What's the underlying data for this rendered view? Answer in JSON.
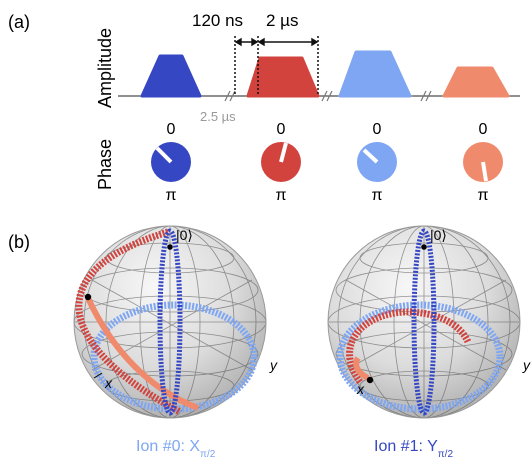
{
  "panel_a": {
    "label": "(a)",
    "amplitude_label": "Amplitude",
    "phase_label": "Phase",
    "ramp_time": "120 ns",
    "pulse_duration": "2 µs",
    "gap_time": "2.5 µs",
    "phase_top_label": "0",
    "phase_bottom_label": "π",
    "pulses": [
      {
        "color": "#3647c4",
        "phase_tick": "upper-left"
      },
      {
        "color": "#d2433e",
        "phase_tick": "upper-right"
      },
      {
        "color": "#7ea6f2",
        "phase_tick": "upper-left"
      },
      {
        "color": "#f08a6c",
        "phase_tick": "down"
      }
    ]
  },
  "panel_b": {
    "label": "(b)",
    "spheres": [
      {
        "ket": "|0⟩",
        "x_axis": "x",
        "y_axis": "y",
        "caption_main": "Ion #0: X",
        "caption_sub": "π/2",
        "caption_color": "#7ea6f2"
      },
      {
        "ket": "|0⟩",
        "x_axis": "x",
        "y_axis": "y",
        "caption_main": "Ion #1: Y",
        "caption_sub": "π/2",
        "caption_color": "#3647c4"
      }
    ],
    "trajectory_colors": [
      "#3647c4",
      "#d2433e",
      "#7ea6f2",
      "#f08a6c"
    ]
  }
}
